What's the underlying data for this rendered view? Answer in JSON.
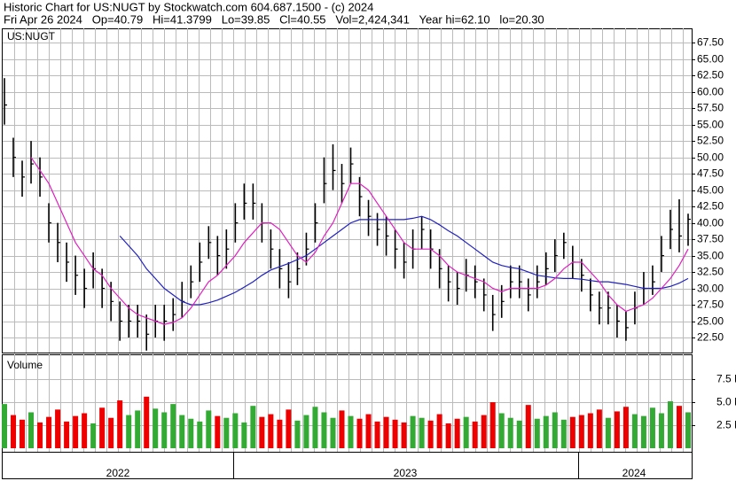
{
  "chart_data": {
    "type": "ohlc",
    "title": "Historic Chart for US:NUGT by Stockwatch.com 604.687.1500 - (c) 2024",
    "subtitle": "Fri Apr 26 2024   Op=40.79   Hi=41.3799   Lo=39.85   Cl=40.55   Vol=2,424,341   Year hi=62.10   lo=20.30",
    "symbol": "US:NUGT",
    "volume_label": "Volume",
    "year_labels": [
      "2022",
      "2023",
      "2024"
    ],
    "bar_color": "#000000",
    "up_color": "#33aa33",
    "down_color": "#ee0000",
    "grid": true,
    "high": [
      62.1,
      53,
      49.5,
      52.5,
      50,
      43,
      40,
      37,
      35,
      33,
      35.5,
      33,
      31,
      28,
      27.5,
      27.5,
      26,
      27.5,
      27.5,
      28.5,
      31,
      33.5,
      37,
      39.5,
      38,
      39,
      43,
      46,
      46,
      43,
      39,
      36,
      34,
      35.5,
      38.5,
      43,
      50,
      52,
      49,
      51.5,
      47,
      43.5,
      41.5,
      41,
      39,
      37,
      39,
      41,
      39,
      36,
      33.5,
      32.5,
      34.5,
      33.5,
      31.5,
      29,
      30.5,
      33.5,
      33.5,
      31.5,
      33.5,
      35.5,
      37.5,
      38.5,
      36.5,
      34.5,
      31.5,
      29.5,
      29.5,
      27.5,
      26.5,
      29.5,
      32.5,
      33.5,
      38,
      42,
      43.6,
      41.4
    ],
    "low": [
      55,
      47,
      44,
      46,
      44,
      37,
      34,
      31,
      29,
      27,
      30,
      27,
      25,
      22,
      22.5,
      22.5,
      20.5,
      22.5,
      22,
      23.5,
      25.5,
      28.5,
      31,
      34.5,
      32,
      33,
      37,
      40.5,
      40.5,
      37,
      33,
      30,
      28.5,
      30.5,
      33.5,
      37,
      43,
      45,
      43,
      46,
      41,
      38,
      36.5,
      35,
      33,
      31.5,
      33,
      36,
      33,
      30,
      28,
      27.5,
      29.5,
      28.5,
      26.5,
      23.5,
      25.5,
      28.5,
      28.5,
      26.5,
      28.5,
      30.5,
      32.5,
      34.5,
      31.5,
      29.5,
      26.5,
      24.5,
      24.5,
      22.5,
      22,
      24.5,
      27.5,
      29,
      32.5,
      36,
      35.5,
      36.5
    ],
    "close": [
      58,
      50,
      47,
      49,
      47,
      40,
      37,
      34,
      32,
      30,
      33,
      30,
      28,
      25,
      25,
      25,
      23,
      25,
      25,
      26,
      28,
      31,
      34,
      37,
      35,
      36,
      40,
      43,
      43,
      40,
      36,
      33,
      31,
      33,
      36,
      40,
      46,
      48,
      46,
      49,
      44,
      41,
      39,
      38,
      36,
      34,
      36,
      39,
      36,
      33,
      31,
      30,
      32,
      31,
      29,
      26,
      28,
      31,
      31,
      29,
      31,
      33,
      35,
      37,
      34,
      32,
      29,
      27,
      27,
      25,
      24,
      27,
      30,
      31,
      35,
      39,
      38,
      40.55
    ],
    "volume": [
      4800000,
      3600000,
      3100000,
      3900000,
      2800000,
      3400000,
      4200000,
      2900000,
      3500000,
      3800000,
      2700000,
      4400000,
      3300000,
      5200000,
      3600000,
      4100000,
      5600000,
      4300000,
      3900000,
      4800000,
      3600000,
      3200000,
      2900000,
      4100000,
      3500000,
      3300000,
      3800000,
      2800000,
      4600000,
      3400000,
      3700000,
      3100000,
      4200000,
      3000000,
      3600000,
      4500000,
      3900000,
      3300000,
      4100000,
      3500000,
      3200000,
      3700000,
      2900000,
      3400000,
      3100000,
      2800000,
      3500000,
      3300000,
      3000000,
      3700000,
      2700000,
      3200000,
      3400000,
      2900000,
      3600000,
      5000000,
      3800000,
      3300000,
      3000000,
      4700000,
      3200000,
      3500000,
      3900000,
      3100000,
      3400000,
      3600000,
      3800000,
      4200000,
      3300000,
      4000000,
      4500000,
      3700000,
      3500000,
      4400000,
      3800000,
      5100000,
      4600000,
      3900000
    ],
    "ma_short": {
      "color": "#e020c0",
      "values": [
        null,
        null,
        null,
        50,
        48,
        46,
        43,
        40,
        37,
        35,
        33,
        32,
        30,
        28.5,
        27,
        26,
        25.5,
        25,
        24.5,
        24.8,
        25.5,
        27,
        29,
        31,
        32,
        33.5,
        35,
        37,
        38.5,
        40,
        40,
        39,
        37,
        35,
        34,
        35.5,
        38,
        40,
        43,
        46,
        46,
        45,
        43,
        41,
        39,
        37,
        36,
        36,
        36,
        35,
        33.5,
        32.5,
        32,
        31.5,
        31,
        30,
        29.5,
        30,
        30,
        30,
        30,
        30.5,
        31.5,
        33,
        34,
        34,
        32.5,
        31,
        29,
        27.5,
        26.5,
        27,
        27.5,
        28.5,
        30,
        31.5,
        33.5,
        36
      ]
    },
    "ma_long": {
      "color": "#2020c0",
      "values": [
        null,
        null,
        null,
        null,
        null,
        null,
        null,
        null,
        null,
        null,
        null,
        null,
        null,
        38,
        36.5,
        35,
        33,
        31.5,
        30,
        29,
        28,
        27.5,
        27.5,
        27.8,
        28.2,
        28.8,
        29.4,
        30.2,
        31,
        32,
        32.8,
        33.3,
        33.8,
        34.4,
        35,
        36,
        37,
        38,
        39,
        40,
        40.5,
        40.5,
        40.5,
        40.5,
        40.5,
        40.5,
        40.7,
        41,
        40.5,
        39.7,
        38.8,
        38,
        37,
        36,
        35,
        34,
        33.5,
        33.2,
        33,
        32.5,
        32,
        31.8,
        31.6,
        31.5,
        31.5,
        31.4,
        31.2,
        31,
        31,
        30.8,
        30.6,
        30.3,
        30,
        30,
        30,
        30.3,
        30.8,
        31.5
      ]
    },
    "ylim": [
      20.2,
      69.7
    ],
    "yticks": [
      {
        "value": 22.5,
        "label": "22.50"
      },
      {
        "value": 25,
        "label": "25.00"
      },
      {
        "value": 27.5,
        "label": "27.50"
      },
      {
        "value": 30,
        "label": "30.00"
      },
      {
        "value": 32.5,
        "label": "32.50"
      },
      {
        "value": 35,
        "label": "35.00"
      },
      {
        "value": 37.5,
        "label": "37.50"
      },
      {
        "value": 40,
        "label": "40.00"
      },
      {
        "value": 42.5,
        "label": "42.50"
      },
      {
        "value": 45,
        "label": "45.00"
      },
      {
        "value": 47.5,
        "label": "47.50"
      },
      {
        "value": 50,
        "label": "50.00"
      },
      {
        "value": 52.5,
        "label": "52.50"
      },
      {
        "value": 55,
        "label": "55.00"
      },
      {
        "value": 57.5,
        "label": "57.50"
      },
      {
        "value": 60,
        "label": "60.00"
      },
      {
        "value": 62.5,
        "label": "62.50"
      },
      {
        "value": 65,
        "label": "65.00"
      },
      {
        "value": 67.5,
        "label": "67.50"
      }
    ],
    "y2lim": [
      0,
      10200000
    ],
    "y2ticks": [
      {
        "value": 2500000,
        "label": "2.5 M"
      },
      {
        "value": 5000000,
        "label": "5.0 M"
      },
      {
        "value": 7500000,
        "label": "7.5 M"
      }
    ]
  }
}
